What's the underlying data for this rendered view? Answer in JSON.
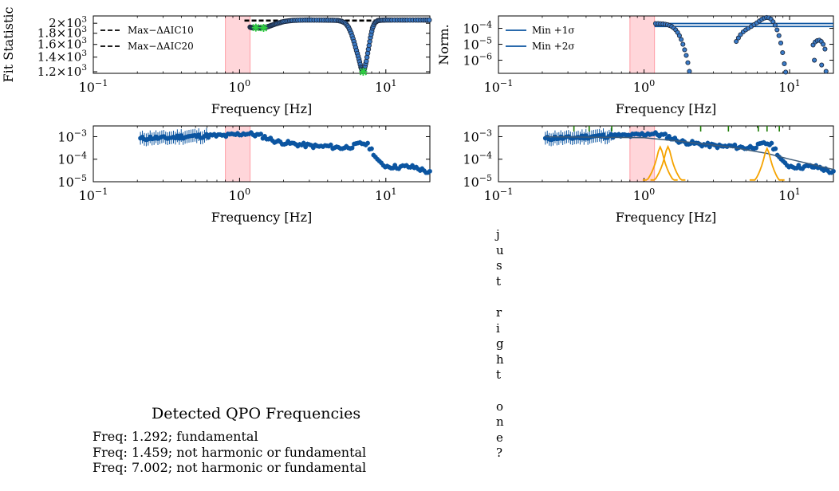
{
  "colors": {
    "data_face": "#3a7bc8",
    "data_edge": "#1f2d44",
    "series_line": "#0b55a1",
    "band": "#ff9ea6",
    "peak_marker": "#2ecc40",
    "model_line": "#3c5a78",
    "lorentzian": "#f5a300",
    "significance_tick": "#1a7a00"
  },
  "chart_data": [
    {
      "id": "fit-statistic",
      "type": "scatter",
      "xlabel": "Frequency [Hz]",
      "ylabel": "Fit Statistic",
      "x_scale": "log",
      "y_scale": "log",
      "xlim": [
        0.1,
        20
      ],
      "ylim": [
        1180,
        2160
      ],
      "x_ticks": [
        {
          "value": 0.1,
          "base": "10",
          "exp": "−1"
        },
        {
          "value": 1,
          "base": "10",
          "exp": "0"
        },
        {
          "value": 10,
          "base": "10",
          "exp": "1"
        }
      ],
      "y_ticks": [
        {
          "value": 1200,
          "mant": "1.2",
          "exp": "3"
        },
        {
          "value": 1400,
          "mant": "1.4",
          "exp": "3"
        },
        {
          "value": 1600,
          "mant": "1.6",
          "exp": "3"
        },
        {
          "value": 1800,
          "mant": "1.8",
          "exp": "3"
        },
        {
          "value": 2000,
          "mant": "2",
          "exp": "3"
        }
      ],
      "band": [
        0.8,
        1.18
      ],
      "legend_position": "upper-left",
      "legend": [
        {
          "label": "Max−ΔAIC10",
          "style": "dashed"
        },
        {
          "label": "Max−ΔAIC20",
          "style": "dashed"
        }
      ],
      "threshold_lines": [
        {
          "name": "Max−ΔAIC10",
          "y": 2065,
          "x_from": 1.08
        },
        {
          "name": "Max−ΔAIC20",
          "y": 2050,
          "x_from": 1.08
        }
      ],
      "points": [
        [
          1.18,
          1920
        ],
        [
          1.21,
          1910
        ],
        [
          1.25,
          1905
        ],
        [
          1.3,
          1915
        ],
        [
          1.35,
          1900
        ],
        [
          1.4,
          1910
        ],
        [
          1.46,
          1905
        ],
        [
          1.52,
          1920
        ],
        [
          1.58,
          1935
        ],
        [
          1.65,
          1955
        ],
        [
          1.72,
          1975
        ],
        [
          1.8,
          1995
        ],
        [
          1.9,
          2015
        ],
        [
          2.0,
          2035
        ],
        [
          2.15,
          2050
        ],
        [
          2.3,
          2060
        ],
        [
          2.5,
          2065
        ],
        [
          2.8,
          2068
        ],
        [
          3.1,
          2068
        ],
        [
          3.5,
          2067
        ],
        [
          3.9,
          2066
        ],
        [
          4.3,
          2064
        ],
        [
          4.7,
          2060
        ],
        [
          5.0,
          2040
        ],
        [
          5.3,
          2000
        ],
        [
          5.55,
          1920
        ],
        [
          5.8,
          1800
        ],
        [
          6.05,
          1650
        ],
        [
          6.3,
          1500
        ],
        [
          6.55,
          1370
        ],
        [
          6.75,
          1260
        ],
        [
          6.9,
          1215
        ],
        [
          7.0,
          1200
        ],
        [
          7.15,
          1240
        ],
        [
          7.35,
          1340
        ],
        [
          7.6,
          1520
        ],
        [
          7.85,
          1720
        ],
        [
          8.1,
          1900
        ],
        [
          8.4,
          2010
        ],
        [
          8.8,
          2055
        ],
        [
          9.3,
          2065
        ],
        [
          10,
          2068
        ],
        [
          11,
          2068
        ],
        [
          12.5,
          2068
        ],
        [
          14,
          2068
        ],
        [
          16,
          2068
        ],
        [
          18,
          2068
        ],
        [
          19.8,
          2068
        ]
      ],
      "peaks": [
        [
          1.292,
          1910
        ],
        [
          1.459,
          1905
        ],
        [
          7.002,
          1200
        ]
      ]
    },
    {
      "id": "normalised-power",
      "type": "scatter",
      "xlabel": "Frequency [Hz]",
      "ylabel": "Norm.",
      "x_scale": "log",
      "y_scale": "log",
      "xlim": [
        0.1,
        20
      ],
      "ylim": [
        1.5e-07,
        0.0006
      ],
      "x_ticks": [
        {
          "value": 0.1,
          "base": "10",
          "exp": "−1"
        },
        {
          "value": 1,
          "base": "10",
          "exp": "0"
        },
        {
          "value": 10,
          "base": "10",
          "exp": "1"
        }
      ],
      "y_ticks": [
        {
          "value": 1e-06,
          "base": "10",
          "exp": "−6"
        },
        {
          "value": 1e-05,
          "base": "10",
          "exp": "−5"
        },
        {
          "value": 0.0001,
          "base": "10",
          "exp": "−4"
        }
      ],
      "band": [
        0.8,
        1.18
      ],
      "legend_position": "upper-left",
      "legend": [
        {
          "label": "Min +1σ",
          "style": "solid"
        },
        {
          "label": "Min +2σ",
          "style": "solid"
        }
      ],
      "threshold_lines": [
        {
          "name": "Min +1σ",
          "y": 0.0002,
          "x_from": 1.18
        },
        {
          "name": "Min +2σ",
          "y": 0.00013,
          "x_from": 1.18
        }
      ],
      "points": [
        [
          1.2,
          0.0002
        ],
        [
          1.25,
          0.0002
        ],
        [
          1.3,
          0.000195
        ],
        [
          1.35,
          0.00019
        ],
        [
          1.4,
          0.00018
        ],
        [
          1.45,
          0.00017
        ],
        [
          1.5,
          0.00015
        ],
        [
          1.55,
          0.00013
        ],
        [
          1.6,
          0.000105
        ],
        [
          1.65,
          8e-05
        ],
        [
          1.7,
          5.5e-05
        ],
        [
          1.75,
          3.5e-05
        ],
        [
          1.8,
          2e-05
        ],
        [
          1.85,
          1e-05
        ],
        [
          1.9,
          4.5e-06
        ],
        [
          1.95,
          2e-06
        ],
        [
          2.0,
          7e-07
        ],
        [
          2.05,
          2e-07
        ],
        [
          4.3,
          1.5e-05
        ],
        [
          4.45,
          2.5e-05
        ],
        [
          4.6,
          4e-05
        ],
        [
          4.8,
          6e-05
        ],
        [
          5.0,
          8e-05
        ],
        [
          5.2,
          0.0001
        ],
        [
          5.45,
          0.00013
        ],
        [
          5.7,
          0.00017
        ],
        [
          5.95,
          0.00022
        ],
        [
          6.2,
          0.00029
        ],
        [
          6.45,
          0.00037
        ],
        [
          6.7,
          0.00044
        ],
        [
          6.95,
          0.00048
        ],
        [
          7.2,
          0.00046
        ],
        [
          7.45,
          0.00038
        ],
        [
          7.7,
          0.00026
        ],
        [
          7.95,
          0.00016
        ],
        [
          8.2,
          8e-05
        ],
        [
          8.45,
          3.5e-05
        ],
        [
          8.7,
          1.2e-05
        ],
        [
          8.95,
          3e-06
        ],
        [
          9.2,
          6e-07
        ],
        [
          9.4,
          1.8e-07
        ],
        [
          14.5,
          9e-06
        ],
        [
          15.0,
          1.4e-05
        ],
        [
          15.5,
          1.7e-05
        ],
        [
          16.0,
          1.8e-05
        ],
        [
          16.5,
          1.5e-05
        ],
        [
          17.0,
          1e-05
        ],
        [
          17.5,
          5e-06
        ],
        [
          14.8,
          1e-06
        ],
        [
          16.6,
          5e-07
        ],
        [
          17.8,
          2e-07
        ]
      ]
    },
    {
      "id": "power-spectrum",
      "type": "scatter",
      "xlabel": "Frequency [Hz]",
      "ylabel": "",
      "x_scale": "log",
      "y_scale": "log",
      "xlim": [
        0.1,
        20
      ],
      "ylim": [
        1e-05,
        0.003
      ],
      "x_ticks": [
        {
          "value": 0.1,
          "base": "10",
          "exp": "−1"
        },
        {
          "value": 1,
          "base": "10",
          "exp": "0"
        },
        {
          "value": 10,
          "base": "10",
          "exp": "1"
        }
      ],
      "y_ticks": [
        {
          "value": 1e-05,
          "base": "10",
          "exp": "−5"
        },
        {
          "value": 0.0001,
          "base": "10",
          "exp": "−4"
        },
        {
          "value": 0.001,
          "base": "10",
          "exp": "−3"
        }
      ],
      "band": [
        0.8,
        1.18
      ],
      "anchors": [
        [
          0.21,
          0.0008
        ],
        [
          0.25,
          0.0009
        ],
        [
          0.3,
          0.00085
        ],
        [
          0.4,
          0.001
        ],
        [
          0.5,
          0.00105
        ],
        [
          0.6,
          0.0011
        ],
        [
          0.7,
          0.0011
        ],
        [
          0.8,
          0.0011
        ],
        [
          0.9,
          0.0012
        ],
        [
          1.0,
          0.0013
        ],
        [
          1.1,
          0.0014
        ],
        [
          1.2,
          0.0013
        ],
        [
          1.4,
          0.0011
        ],
        [
          1.6,
          0.0008
        ],
        [
          1.8,
          0.0006
        ],
        [
          2.0,
          0.00055
        ],
        [
          2.5,
          0.00045
        ],
        [
          3.0,
          0.0004
        ],
        [
          3.5,
          0.00036
        ],
        [
          4.0,
          0.00038
        ],
        [
          4.5,
          0.00034
        ],
        [
          5.0,
          0.00032
        ],
        [
          5.5,
          0.00035
        ],
        [
          6.0,
          0.00038
        ],
        [
          6.5,
          0.00046
        ],
        [
          7.0,
          0.00052
        ],
        [
          7.5,
          0.00043
        ],
        [
          8.0,
          0.00026
        ],
        [
          8.5,
          0.00013
        ],
        [
          9.0,
          7e-05
        ],
        [
          10,
          5e-05
        ],
        [
          12,
          4.5e-05
        ],
        [
          14,
          4.7e-05
        ],
        [
          16,
          4.3e-05
        ],
        [
          18,
          3.2e-05
        ],
        [
          20,
          2.5e-05
        ]
      ]
    },
    {
      "id": "power-spectrum-model",
      "type": "scatter",
      "xlabel": "Frequency [Hz]",
      "ylabel": "",
      "x_scale": "log",
      "y_scale": "log",
      "xlim": [
        0.1,
        20
      ],
      "ylim": [
        1e-05,
        0.003
      ],
      "x_ticks": [
        {
          "value": 0.1,
          "base": "10",
          "exp": "−1"
        },
        {
          "value": 1,
          "base": "10",
          "exp": "0"
        },
        {
          "value": 10,
          "base": "10",
          "exp": "1"
        }
      ],
      "y_ticks": [
        {
          "value": 1e-05,
          "base": "10",
          "exp": "−5"
        },
        {
          "value": 0.0001,
          "base": "10",
          "exp": "−4"
        },
        {
          "value": 0.001,
          "base": "10",
          "exp": "−3"
        }
      ],
      "band": [
        0.8,
        1.18
      ],
      "model": [
        [
          0.21,
          0.001
        ],
        [
          1.0,
          0.0009
        ],
        [
          2.0,
          0.00058
        ],
        [
          4.0,
          0.00034
        ],
        [
          7.0,
          0.00018
        ],
        [
          10,
          0.0001
        ],
        [
          20,
          3.5e-05
        ]
      ],
      "lorentzians": [
        {
          "center": 1.292,
          "peak": 0.00035,
          "half_width_dex": 0.05
        },
        {
          "center": 1.459,
          "peak": 0.00036,
          "half_width_dex": 0.05
        },
        {
          "center": 7.002,
          "peak": 0.0003,
          "half_width_dex": 0.05
        }
      ],
      "significance_ticks": [
        0.33,
        0.42,
        0.6,
        2.45,
        3.8,
        6.1,
        7.0,
        8.5
      ]
    }
  ],
  "detected": {
    "title": "Detected QPO Frequencies",
    "lines": [
      "Freq: 1.292; fundamental",
      "Freq: 1.459; not harmonic or fundamental",
      "Freq: 7.002; not harmonic or fundamental"
    ]
  },
  "vertical_text": "just right one?"
}
